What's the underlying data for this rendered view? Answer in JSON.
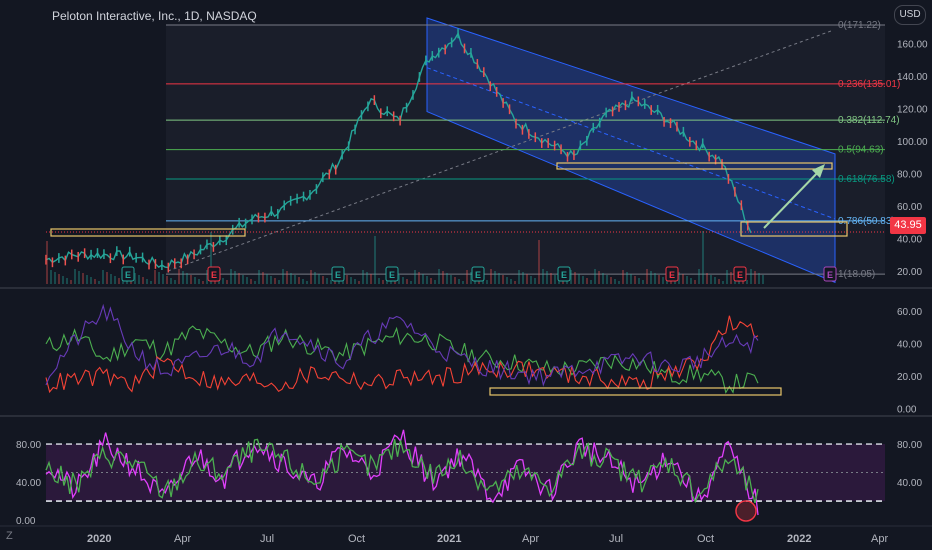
{
  "header": {
    "title": "Peloton Interactive, Inc., 1D, NASDAQ",
    "currency": "USD",
    "last_price": "43.95",
    "zoom_button": "Z"
  },
  "colors": {
    "background": "#131722",
    "up": "#26a69a",
    "down": "#ef5350",
    "channel": "#2962ff",
    "stoch_k": "#e040fb",
    "stoch_d": "#4caf50",
    "dmi_plus": "#4caf50",
    "dmi_minus": "#f44336",
    "adx": "#673ab7",
    "annotation": "#e8c56a"
  },
  "chart_data": [
    {
      "type": "line",
      "pane": "price",
      "title": "Peloton Interactive, Inc., 1D, NASDAQ",
      "x": [
        "2019-11",
        "2019-12",
        "2020-01",
        "2020-02",
        "2020-03",
        "2020-04",
        "2020-05",
        "2020-06",
        "2020-07",
        "2020-08",
        "2020-09",
        "2020-10",
        "2020-11",
        "2020-12",
        "2021-01",
        "2021-02",
        "2021-03",
        "2021-04",
        "2021-05",
        "2021-06",
        "2021-07",
        "2021-08",
        "2021-09",
        "2021-10",
        "2021-11"
      ],
      "close": [
        27,
        30,
        30,
        29,
        23,
        30,
        40,
        52,
        57,
        68,
        88,
        125,
        112,
        150,
        165,
        140,
        112,
        100,
        90,
        115,
        125,
        115,
        100,
        88,
        44
      ],
      "last": 43.95,
      "ylim": [
        12,
        178
      ],
      "y_ticks": [
        20,
        40,
        60,
        80,
        100,
        120,
        140,
        160
      ],
      "x_ticks": [
        "2020",
        "Apr",
        "Jul",
        "Oct",
        "2021",
        "Apr",
        "Jul",
        "Oct",
        "2022",
        "Apr"
      ],
      "fib_levels": [
        {
          "label": "0(171.22)",
          "value": 171.22,
          "color": "#787b86"
        },
        {
          "label": "0.236(135.01)",
          "value": 135.01,
          "color": "#f23645"
        },
        {
          "label": "0.382(112.74)",
          "value": 112.74,
          "color": "#81c784"
        },
        {
          "label": "0.5(94.63)",
          "value": 94.63,
          "color": "#4caf50"
        },
        {
          "label": "0.618(76.58)",
          "value": 76.58,
          "color": "#089981"
        },
        {
          "label": "0.786(50.83)",
          "value": 50.83,
          "color": "#64b5f6"
        },
        {
          "label": "1(18.05)",
          "value": 18.05,
          "color": "#787b86"
        }
      ],
      "events": [
        "E",
        "E",
        "E",
        "E",
        "E",
        "E",
        "E",
        "E",
        "E",
        "E"
      ]
    },
    {
      "type": "line",
      "pane": "dmi",
      "series": [
        {
          "values": [
            38,
            45,
            30,
            42,
            35,
            48,
            40,
            34,
            45,
            38,
            33,
            40,
            45,
            42,
            35,
            30,
            28,
            24,
            25,
            30,
            28,
            20,
            22,
            15,
            18
          ]
        },
        {
          "values": [
            15,
            18,
            20,
            15,
            30,
            20,
            15,
            18,
            15,
            22,
            20,
            15,
            20,
            18,
            22,
            25,
            25,
            22,
            20,
            18,
            15,
            22,
            28,
            52,
            45
          ]
        },
        {
          "values": [
            20,
            42,
            60,
            35,
            22,
            30,
            38,
            30,
            50,
            40,
            28,
            45,
            55,
            40,
            30,
            25,
            22,
            20,
            25,
            28,
            32,
            25,
            30,
            40,
            40
          ]
        }
      ],
      "ylim": [
        -2,
        68
      ],
      "y_ticks": [
        0,
        20,
        40,
        60
      ],
      "tick_labels": [
        "0.00",
        "20.00",
        "40.00",
        "60.00"
      ]
    },
    {
      "type": "line",
      "pane": "stochastic",
      "series": [
        {
          "values": [
            60,
            30,
            80,
            55,
            20,
            70,
            45,
            85,
            60,
            35,
            75,
            50,
            90,
            40,
            70,
            25,
            55,
            30,
            80,
            60,
            35,
            70,
            20,
            75,
            15
          ]
        },
        {
          "values": [
            55,
            35,
            70,
            60,
            28,
            60,
            50,
            75,
            65,
            40,
            68,
            55,
            80,
            48,
            62,
            32,
            50,
            36,
            72,
            62,
            40,
            62,
            28,
            65,
            22
          ]
        }
      ],
      "ylim": [
        -2,
        100
      ],
      "y_ticks": [
        20,
        80
      ],
      "left_tick_labels": [
        "0.00",
        "40.00",
        "80.00"
      ],
      "right_tick_labels": [
        "40.00",
        "80.00"
      ]
    }
  ]
}
